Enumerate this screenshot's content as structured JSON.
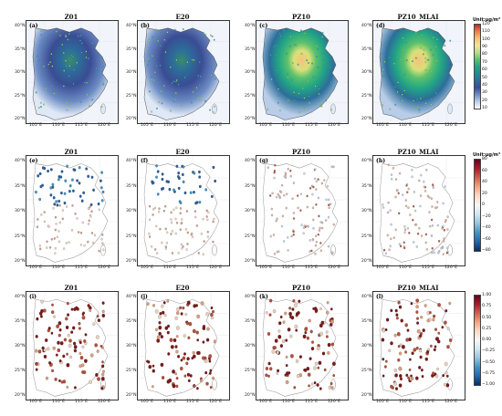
{
  "rows": [
    {
      "titles": [
        "Z01",
        "E20",
        "PZ10",
        "PZ10_MLAI"
      ],
      "labels": [
        "(a)",
        "(b)",
        "(c)",
        "(d)"
      ],
      "lat_labels": [
        "40°N",
        "35°N",
        "30°N",
        "25°N",
        "20°N"
      ],
      "lon_labels": [
        "105°E",
        "110°E",
        "115°E",
        "120°E"
      ],
      "colorbar": {
        "unit": "Unit:μg/m³",
        "ticks": [
          "120",
          "110",
          "100",
          "90",
          "80",
          "70",
          "60",
          "50",
          "40",
          "30",
          "20",
          "10"
        ],
        "colors": [
          "#c1272d",
          "#f07d4e",
          "#f6c27a",
          "#f4e29a",
          "#b6dc8e",
          "#5cc16c",
          "#21a585",
          "#1f8b92",
          "#2c6d9a",
          "#3a4c93",
          "#6c8cc4",
          "#b9cde8",
          "#ffffff"
        ]
      }
    },
    {
      "titles": [
        "Z01",
        "E20",
        "PZ10",
        "PZ10_MLAI"
      ],
      "labels": [
        "(e)",
        "(f)",
        "(g)",
        "(h)"
      ],
      "lat_labels": [
        "40°N",
        "35°N",
        "30°N",
        "25°N",
        "20°N"
      ],
      "lon_labels": [
        "105°E",
        "110°E",
        "115°E",
        "120°E"
      ],
      "colorbar": {
        "unit": "Unit:μg/m³",
        "ticks": [
          "80",
          "60",
          "40",
          "20",
          "0",
          "−20",
          "−40",
          "−60",
          "−80"
        ],
        "colors": [
          "#67001f",
          "#b2182b",
          "#d6604d",
          "#f4a582",
          "#fddbc7",
          "#f7f7f7",
          "#d1e5f0",
          "#92c5de",
          "#4393c3",
          "#2166ac",
          "#053061"
        ]
      }
    },
    {
      "titles": [
        "Z01",
        "E20",
        "PZ10",
        "PZ10_MLAI"
      ],
      "labels": [
        "(i)",
        "(j)",
        "(k)",
        "(l)"
      ],
      "lat_labels": [
        "40°N",
        "35°N",
        "30°N",
        "25°N",
        "20°N"
      ],
      "lon_labels": [
        "105°E",
        "110°E",
        "115°E",
        "120°E"
      ],
      "colorbar": {
        "unit": "",
        "ticks": [
          "1.00",
          "0.75",
          "0.50",
          "0.25",
          "0.00",
          "−0.25",
          "−0.50",
          "−0.75",
          "−1.00"
        ],
        "colors": [
          "#67001f",
          "#b2182b",
          "#d6604d",
          "#f4a582",
          "#fddbc7",
          "#f7f7f7",
          "#d1e5f0",
          "#92c5de",
          "#4393c3",
          "#2166ac",
          "#053061"
        ]
      }
    }
  ],
  "colors": {
    "map_blue_dark": "#2c3e8f",
    "map_blue_light": "#c9d8ee",
    "green": "#4caf50",
    "yellow": "#f0d64a",
    "station_red": "#8b1a1a",
    "station_blue": "#2a5f9e",
    "border": "#999999"
  }
}
